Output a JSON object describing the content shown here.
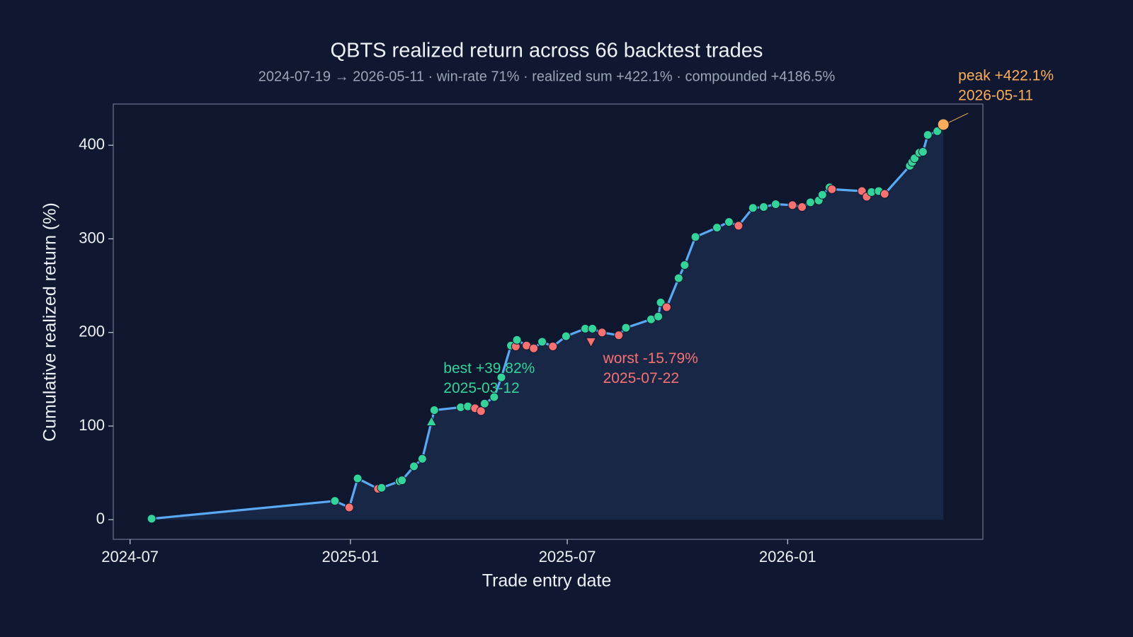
{
  "chart_data": {
    "type": "line",
    "title": "QBTS realized return across 66 backtest trades",
    "subtitle": "2024-07-19 → 2026-05-11 · win-rate 71% · realized sum +422.1% · compounded +4186.5%",
    "x_label": "Trade entry date",
    "y_label": "Cumulative realized return (%)",
    "x": [
      "2024-07-19",
      "2024-12-19",
      "2024-12-31",
      "2025-01-07",
      "2025-01-24",
      "2025-01-27",
      "2025-02-11",
      "2025-02-13",
      "2025-02-23",
      "2025-03-02",
      "2025-03-12",
      "2025-04-03",
      "2025-04-09",
      "2025-04-15",
      "2025-04-20",
      "2025-04-23",
      "2025-05-01",
      "2025-05-07",
      "2025-05-15",
      "2025-05-19",
      "2025-05-20",
      "2025-05-28",
      "2025-06-03",
      "2025-06-10",
      "2025-06-19",
      "2025-06-30",
      "2025-07-16",
      "2025-07-22",
      "2025-07-30",
      "2025-08-13",
      "2025-08-19",
      "2025-09-09",
      "2025-09-15",
      "2025-09-17",
      "2025-09-22",
      "2025-10-02",
      "2025-10-07",
      "2025-10-16",
      "2025-11-03",
      "2025-11-13",
      "2025-11-21",
      "2025-12-03",
      "2025-12-12",
      "2025-12-22",
      "2026-01-05",
      "2026-01-13",
      "2026-01-20",
      "2026-01-27",
      "2026-01-30",
      "2026-02-05",
      "2026-02-07",
      "2026-03-04",
      "2026-03-08",
      "2026-03-12",
      "2026-03-18",
      "2026-03-23",
      "2026-04-13",
      "2026-04-15",
      "2026-04-17",
      "2026-04-21",
      "2026-04-24",
      "2026-04-28",
      "2026-05-06",
      "2026-05-11"
    ],
    "values": [
      1,
      20,
      13,
      44,
      33,
      34,
      41,
      42,
      57,
      65,
      117,
      120,
      121,
      119,
      116,
      124,
      131,
      152,
      186,
      185,
      192,
      186,
      183,
      190,
      185,
      196,
      204,
      204,
      200,
      197,
      205,
      214,
      217,
      232,
      227,
      258,
      272,
      302,
      312,
      318,
      314,
      333,
      334,
      337,
      336,
      334,
      339,
      341,
      347,
      355,
      353,
      351,
      345,
      350,
      351,
      348,
      378,
      382,
      386,
      392,
      393,
      411,
      415,
      422.1
    ],
    "color": "#5aa9f5",
    "win_color": "#34d399",
    "loss_color": "#f87171",
    "area_color": "#1b2a4a",
    "xlim": [
      "2024-06-17",
      "2026-06-13"
    ],
    "xticks": [
      "2024-07",
      "2025-01",
      "2025-07",
      "2026-01"
    ],
    "ylim": [
      -21,
      444
    ],
    "yticks": [
      0,
      100,
      200,
      300,
      400
    ],
    "annotations": [
      {
        "lines": [
          "best +39.82%",
          "2025-03-12"
        ],
        "date": "2025-03-12",
        "color": "#34d399",
        "marker": "triangle-up"
      },
      {
        "lines": [
          "worst -15.79%",
          "2025-07-22"
        ],
        "date": "2025-07-22",
        "color": "#f87171",
        "marker": "triangle-down"
      },
      {
        "lines": [
          "peak +422.1%",
          "2026-05-11"
        ],
        "date": "2026-05-11",
        "color": "#fbad5c",
        "marker": "circle"
      }
    ]
  }
}
